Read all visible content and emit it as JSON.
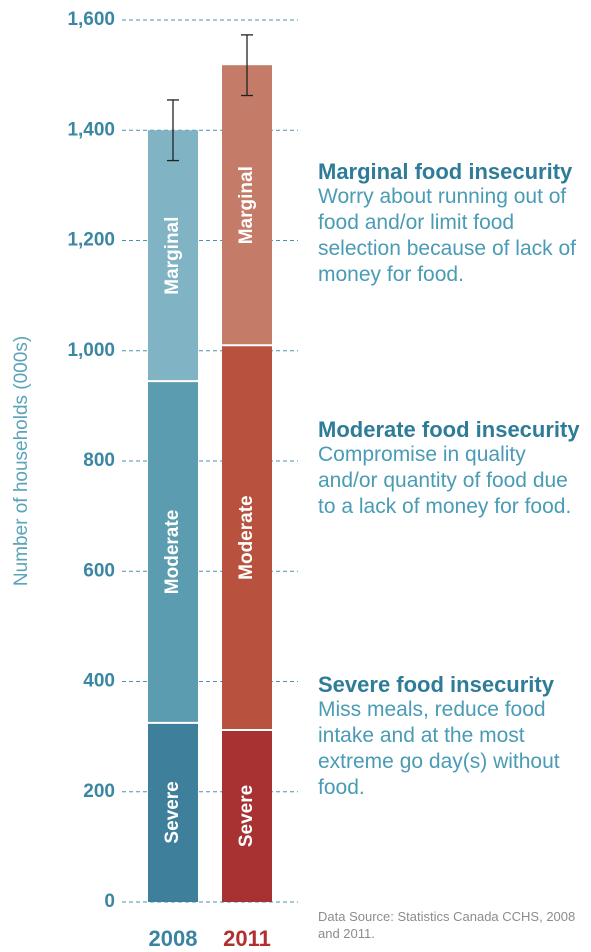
{
  "chart_data": {
    "type": "stacked_bar",
    "y_label": "Number of households (000s)",
    "categories": [
      "2008",
      "2011"
    ],
    "category_colors": [
      "#3a84a2",
      "#b02f2f"
    ],
    "series": [
      {
        "name": "Severe",
        "colors": [
          "#3e809c",
          "#a83232"
        ],
        "values": [
          325,
          312
        ]
      },
      {
        "name": "Moderate",
        "colors": [
          "#5b9cb1",
          "#b9513f"
        ],
        "values": [
          620,
          698
        ]
      },
      {
        "name": "Marginal",
        "colors": [
          "#80b4c5",
          "#c47b68"
        ],
        "values": [
          455,
          508
        ]
      }
    ],
    "errors": [
      55,
      55
    ],
    "ylim": [
      0,
      1600
    ],
    "yticks": [
      0,
      200,
      400,
      600,
      800,
      {
        "value": 1000,
        "label": "1,000"
      },
      {
        "value": 1200,
        "label": "1,200"
      },
      {
        "value": 1400,
        "label": "1,400"
      },
      {
        "value": 1600,
        "label": "1,600"
      }
    ],
    "grid": true,
    "annotations": [
      {
        "title": "Marginal food insecurity",
        "text": "Worry about running out of food and/or limit food selection because of lack of money for food."
      },
      {
        "title": "Moderate food insecurity",
        "text": "Compromise in quality and/or quantity of food due to a lack of money for food."
      },
      {
        "title": "Severe food insecurity",
        "text": "Miss meals, reduce food intake and at the most extreme go day(s) without food."
      }
    ],
    "source": "Data Source: Statistics Canada CCHS, 2008 and 2011."
  }
}
